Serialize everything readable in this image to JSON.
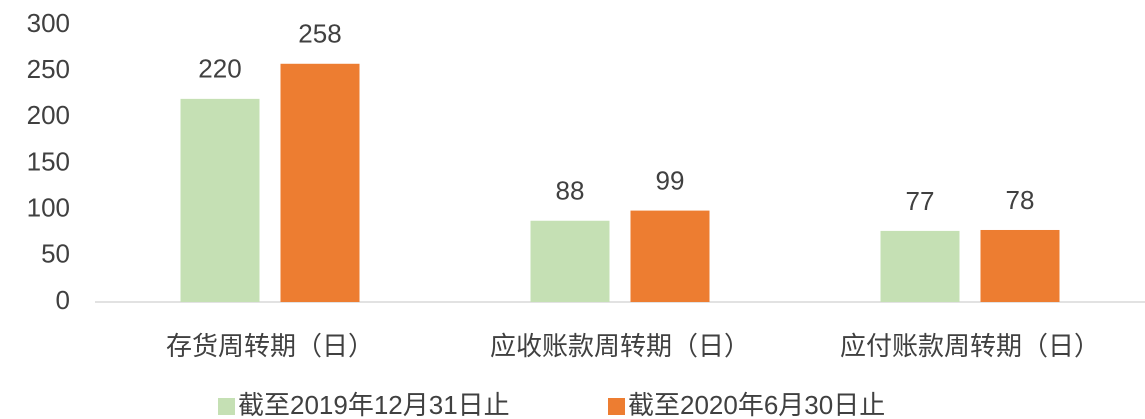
{
  "chart_data": {
    "type": "bar",
    "categories": [
      "存货周转期（日）",
      "应收账款周转期（日）",
      "应付账款周转期（日）"
    ],
    "series": [
      {
        "name": "截至2019年12月31日止",
        "color": "#c5e0b4",
        "values": [
          220,
          88,
          77
        ]
      },
      {
        "name": "截至2020年6月30日止",
        "color": "#ed7d31",
        "values": [
          258,
          99,
          78
        ]
      }
    ],
    "ylim": [
      0,
      300
    ],
    "yticks": [
      0,
      50,
      100,
      150,
      200,
      250,
      300
    ],
    "grid": false,
    "legend": "bottom"
  }
}
